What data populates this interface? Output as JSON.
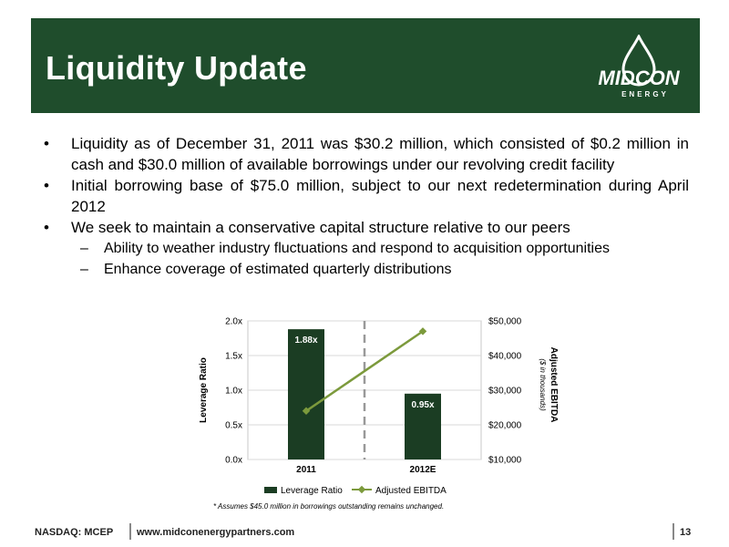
{
  "header": {
    "title": "Liquidity Update"
  },
  "logo": {
    "text_main": "MIDCON",
    "text_sub": "ENERGY"
  },
  "bullets": [
    {
      "level": 1,
      "text": "Liquidity as of  December 31, 2011 was $30.2 million, which consisted of $0.2 million in cash and $30.0 million of available borrowings under our revolving credit facility"
    },
    {
      "level": 1,
      "text": "Initial borrowing base of $75.0 million, subject to our next redetermination during April 2012"
    },
    {
      "level": 1,
      "text": "We seek to maintain a conservative capital structure relative to our peers"
    },
    {
      "level": 2,
      "text": "Ability to weather industry fluctuations and respond to acquisition opportunities"
    },
    {
      "level": 2,
      "text": "Enhance coverage of estimated quarterly distributions"
    }
  ],
  "chart_data": {
    "type": "bar",
    "categories": [
      "2011",
      "2012E"
    ],
    "series": [
      {
        "name": "Leverage Ratio",
        "type": "bar",
        "axis": "left",
        "values": [
          1.88,
          0.95
        ],
        "labels": [
          "1.88x",
          "0.95x"
        ]
      },
      {
        "name": "Adjusted EBITDA",
        "type": "line",
        "axis": "right",
        "values": [
          24000,
          47000
        ]
      }
    ],
    "ylabel_left": "Leverage Ratio",
    "ylabel_right": "Adjusted EBITDA",
    "ylabel_right_sub": "($ in thousands)",
    "ylim_left": [
      0,
      2
    ],
    "ylim_right": [
      10000,
      50000
    ],
    "yticks_left": [
      "0.0x",
      "0.5x",
      "1.0x",
      "1.5x",
      "2.0x"
    ],
    "yticks_right": [
      "$10,000",
      "$20,000",
      "$30,000",
      "$40,000",
      "$50,000"
    ],
    "legend_position": "bottom",
    "footnote": "* Assumes $45.0 million in borrowings outstanding remains unchanged.",
    "colors": {
      "bar": "#1b3d23",
      "line": "#7c9a3c",
      "divider": "#999999"
    }
  },
  "footer": {
    "ticker": "NASDAQ: MCEP",
    "url": "www.midconenergypartners.com",
    "page": "13"
  }
}
